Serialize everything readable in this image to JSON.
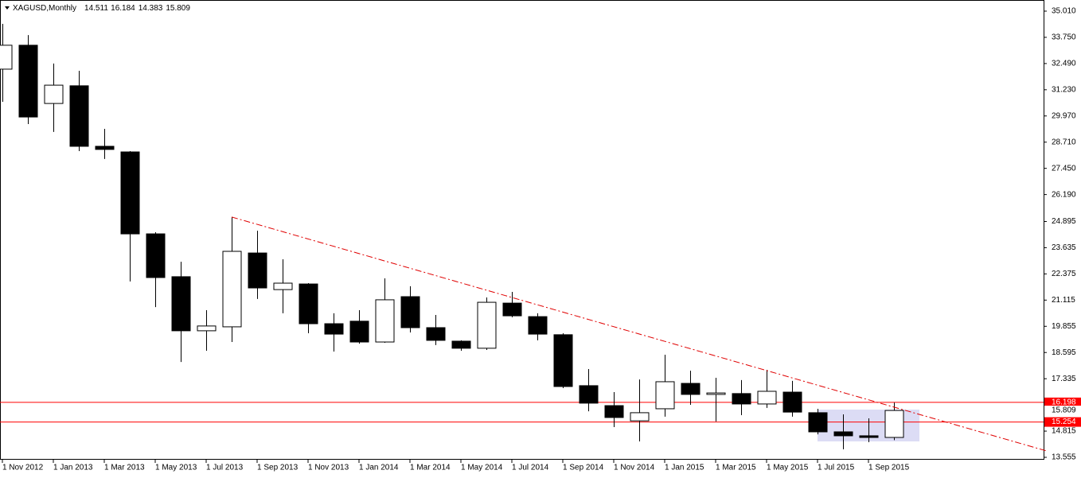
{
  "chart_data": {
    "type": "candlestick",
    "symbol": "XAGUSD,Monthly",
    "categories": [
      "1 Nov 2012",
      null,
      "1 Jan 2013",
      null,
      "1 Mar 2013",
      null,
      "1 May 2013",
      null,
      "1 Jul 2013",
      null,
      "1 Sep 2013",
      null,
      "1 Nov 2013",
      null,
      "1 Jan 2014",
      null,
      "1 Mar 2014",
      null,
      "1 May 2014",
      null,
      "1 Jul 2014",
      null,
      "1 Sep 2014",
      null,
      "1 Nov 2014",
      null,
      "1 Jan 2015",
      null,
      "1 Mar 2015",
      null,
      "1 May 2015",
      null,
      "1 Jul 2015",
      null,
      "1 Sep 2015",
      null
    ],
    "candles": {
      "open": [
        32.22,
        33.37,
        30.57,
        31.42,
        28.51,
        28.24,
        24.3,
        22.24,
        19.64,
        19.83,
        23.38,
        21.62,
        21.89,
        19.98,
        20.1,
        19.1,
        21.28,
        19.79,
        19.14,
        18.8,
        20.97,
        20.32,
        19.45,
        17.0,
        16.04,
        15.31,
        15.89,
        17.11,
        16.58,
        16.62,
        16.12,
        16.69,
        15.7,
        14.78,
        14.59,
        14.511
      ],
      "high": [
        34.4,
        33.86,
        32.49,
        32.14,
        29.35,
        28.28,
        24.38,
        22.96,
        20.63,
        25.11,
        24.45,
        23.08,
        21.93,
        20.48,
        20.63,
        22.16,
        21.78,
        20.4,
        19.18,
        21.24,
        21.51,
        20.48,
        19.52,
        17.8,
        16.69,
        17.3,
        18.49,
        17.72,
        17.38,
        17.27,
        17.76,
        17.23,
        15.89,
        15.62,
        15.43,
        16.184
      ],
      "low": [
        30.65,
        29.58,
        29.2,
        28.28,
        27.9,
        22.01,
        20.78,
        18.14,
        18.68,
        19.1,
        21.17,
        20.48,
        19.52,
        18.64,
        19.02,
        19.06,
        19.56,
        18.95,
        18.68,
        18.72,
        20.29,
        19.18,
        16.88,
        15.77,
        15.01,
        14.32,
        15.51,
        16.08,
        15.28,
        15.58,
        15.93,
        15.51,
        14.66,
        13.94,
        14.28,
        14.383
      ],
      "close": [
        33.37,
        29.92,
        31.45,
        28.51,
        28.36,
        24.3,
        22.2,
        19.64,
        19.87,
        23.46,
        21.7,
        21.93,
        19.98,
        19.48,
        19.1,
        21.13,
        19.79,
        19.18,
        18.8,
        21.01,
        20.36,
        19.48,
        16.96,
        16.16,
        15.47,
        15.7,
        17.19,
        16.58,
        16.65,
        16.12,
        16.73,
        15.73,
        14.78,
        14.59,
        14.51,
        15.809
      ]
    },
    "ylim": [
      13.555,
      35.01
    ],
    "yticks": [
      {
        "value": 35.01,
        "label": "35.010"
      },
      {
        "value": 33.75,
        "label": "33.750"
      },
      {
        "value": 32.49,
        "label": "32.490"
      },
      {
        "value": 31.23,
        "label": "31.230"
      },
      {
        "value": 29.97,
        "label": "29.970"
      },
      {
        "value": 28.71,
        "label": "28.710"
      },
      {
        "value": 27.45,
        "label": "27.450"
      },
      {
        "value": 26.19,
        "label": "26.190"
      },
      24.895,
      23.635,
      22.375,
      21.115,
      19.855,
      18.595,
      17.335,
      14.815,
      13.555
    ],
    "levels": [
      16.198,
      15.254
    ],
    "level_color": "#ff0000",
    "trendline": [
      {
        "index": 9,
        "value": 25.11
      },
      {
        "index": 41,
        "value": 13.86
      }
    ],
    "trendline_color": "#e00000",
    "zone": {
      "from_index": 32,
      "to_index": 36,
      "top": 15.85,
      "bottom": 14.32,
      "color": "#dcdcf5"
    }
  }
}
